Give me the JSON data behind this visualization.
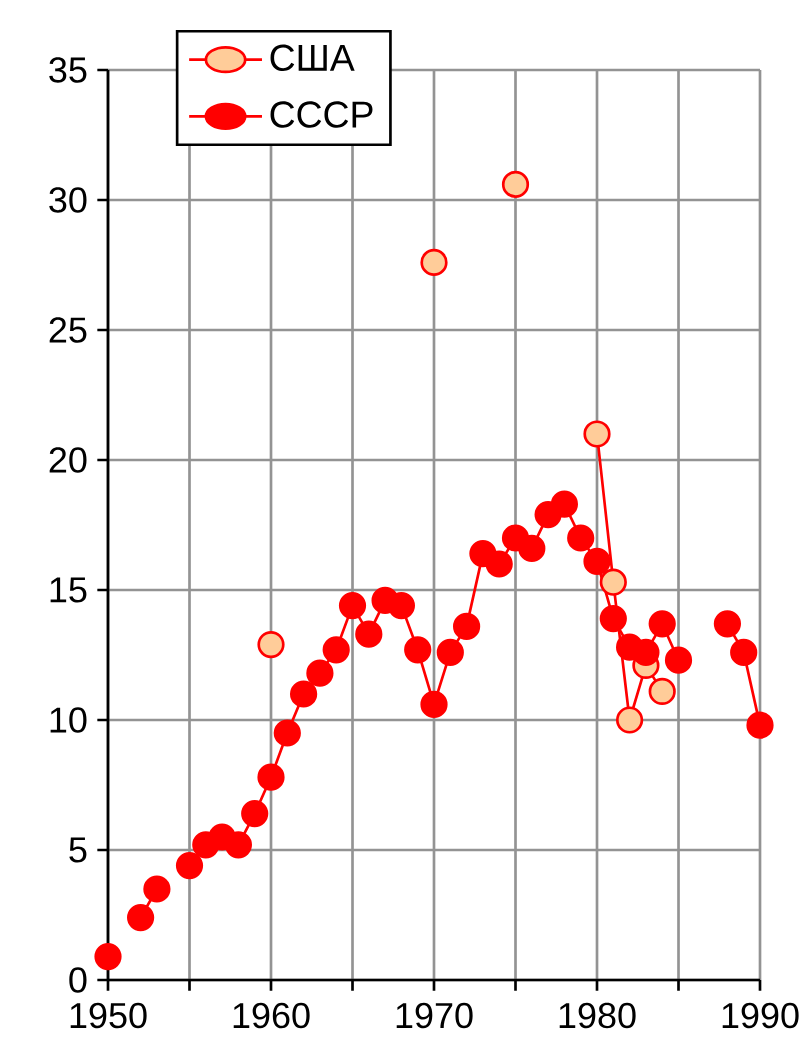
{
  "chart_data": {
    "type": "line",
    "legend": "top left",
    "grid": true,
    "marker": "circle",
    "line_style": "solid",
    "xlim": [
      1950,
      1990
    ],
    "ylim": [
      0,
      35
    ],
    "xticks": [
      1950,
      {
        "value": 1955,
        "label": null
      },
      1960,
      {
        "value": 1965,
        "label": null
      },
      1970,
      {
        "value": 1975,
        "label": null
      },
      1980,
      {
        "value": 1985,
        "label": null
      },
      1990
    ],
    "yticks": [
      0,
      5,
      10,
      15,
      20,
      25,
      30,
      35
    ],
    "series": [
      {
        "name": "США",
        "color": "#ffcc99",
        "x": [
          1960,
          1961,
          1970,
          1971,
          1975,
          1976,
          1980,
          1981,
          1982,
          1983,
          1984
        ],
        "values": [
          12.9,
          null,
          27.6,
          null,
          30.6,
          null,
          21.0,
          15.3,
          10.0,
          12.1,
          11.1
        ]
      },
      {
        "name": "СССР",
        "color": "#ff0000",
        "x": [
          1950,
          1951,
          1952,
          1953,
          1954,
          1955,
          1956,
          1957,
          1958,
          1959,
          1960,
          1961,
          1962,
          1963,
          1964,
          1965,
          1966,
          1967,
          1968,
          1969,
          1970,
          1971,
          1972,
          1973,
          1974,
          1975,
          1976,
          1977,
          1978,
          1979,
          1980,
          1981,
          1982,
          1983,
          1984,
          1985,
          1986,
          1987,
          1988,
          1989,
          1990
        ],
        "values": [
          0.9,
          null,
          2.4,
          3.5,
          null,
          4.4,
          5.2,
          5.5,
          5.2,
          6.4,
          7.8,
          9.5,
          11.0,
          11.8,
          12.7,
          14.4,
          13.3,
          14.6,
          14.4,
          12.7,
          10.6,
          12.6,
          13.6,
          16.4,
          16.0,
          17.0,
          16.6,
          17.9,
          18.3,
          17.0,
          16.1,
          13.9,
          12.8,
          12.6,
          13.7,
          12.3,
          null,
          null,
          13.7,
          12.6,
          9.8
        ]
      }
    ]
  }
}
